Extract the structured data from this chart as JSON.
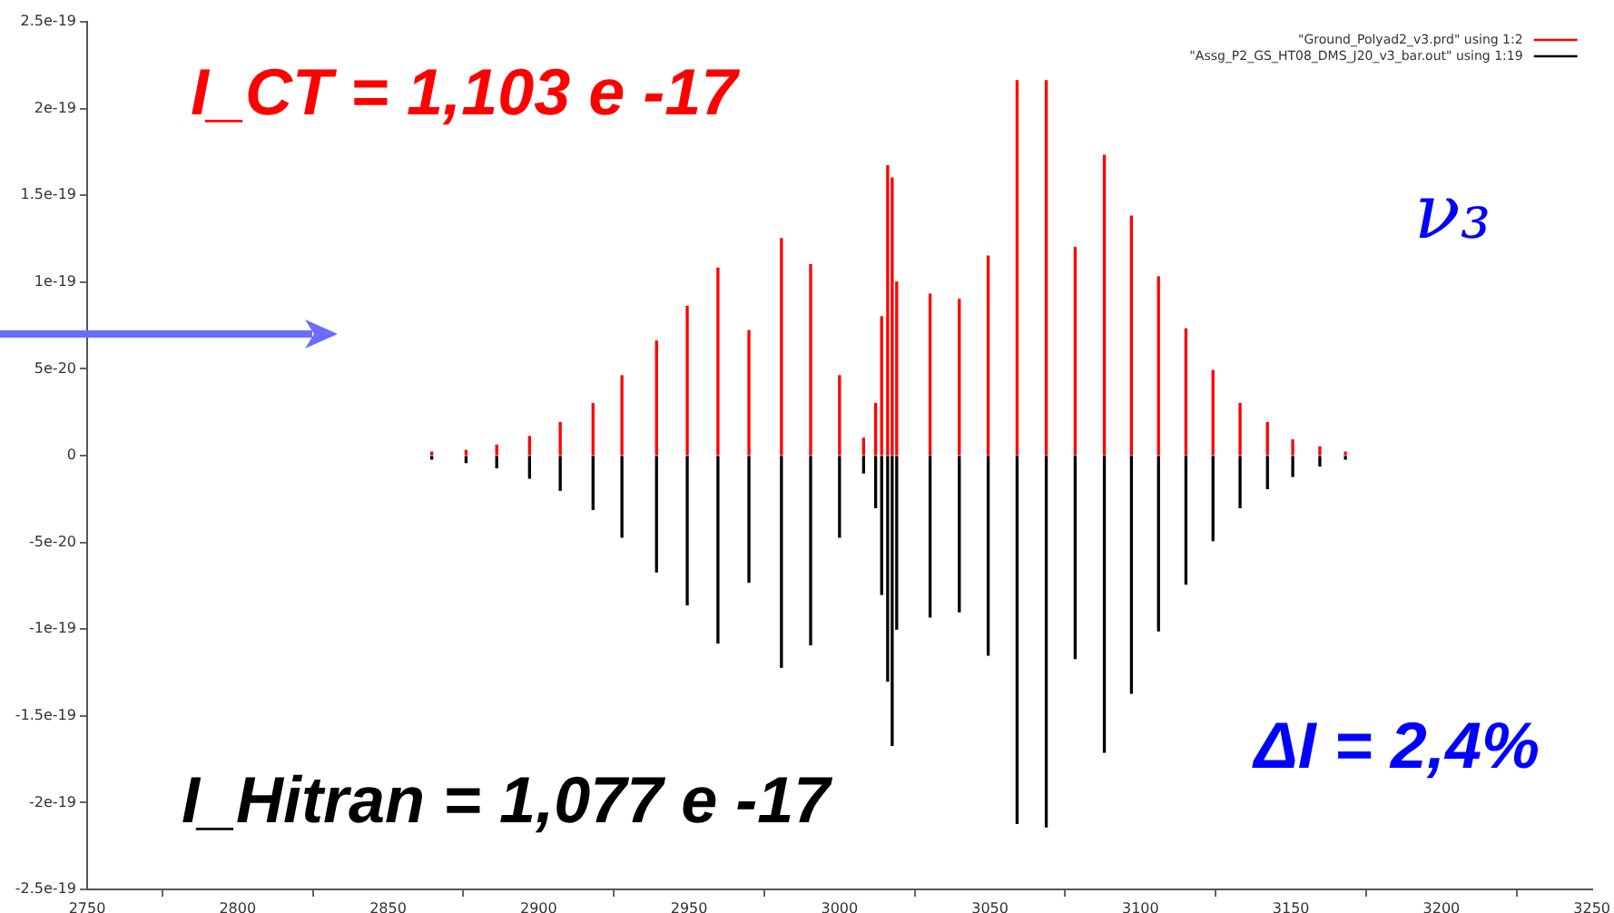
{
  "chart_data": {
    "type": "bar",
    "xlim": [
      2750,
      3250
    ],
    "xticks": [
      2750,
      2800,
      2850,
      2900,
      2950,
      3000,
      3050,
      3100,
      3150,
      3200,
      3250
    ],
    "ylim": [
      -2.5e-19,
      2.5e-19
    ],
    "yticks": [
      -2.5e-19,
      -2e-19,
      -1.5e-19,
      -1e-19,
      -5e-20,
      0,
      5e-20,
      1e-19,
      1.5e-19,
      2e-19,
      2.5e-19
    ],
    "legend": "top right",
    "annotations": [
      "I_CT = 1,103 e -17",
      "I_Hitran = 1,077 e -17",
      "ΔI = 2,4%",
      "ν₃"
    ],
    "series": [
      {
        "name": "\"Ground_Polyad2_v3.prd\" using 1:2",
        "color": "#ff0000",
        "x": [
          2864.5,
          2875.9,
          2886.1,
          2897,
          2907.2,
          2918.1,
          2927.7,
          2939.2,
          2949.4,
          2959.6,
          2969.9,
          2980.7,
          2990.4,
          3000,
          3008,
          3012,
          3014,
          3016,
          3017.5,
          3019,
          3030.1,
          3039.8,
          3049.4,
          3059,
          3068.7,
          3078.3,
          3088,
          3097,
          3106,
          3115.1,
          3124.1,
          3133.1,
          3142.2,
          3150.6,
          3159.6,
          3168.1
        ],
        "values": [
          2e-21,
          3e-21,
          6e-21,
          1.1e-20,
          1.9e-20,
          3e-20,
          4.6e-20,
          6.6e-20,
          8.6e-20,
          1.08e-19,
          7.2e-20,
          1.25e-19,
          1.1e-19,
          4.6e-20,
          1e-20,
          3e-20,
          8e-20,
          1.67e-19,
          1.6e-19,
          1e-19,
          9.3e-20,
          9e-20,
          1.15e-19,
          2.16e-19,
          2.16e-19,
          1.2e-19,
          1.73e-19,
          1.38e-19,
          1.03e-19,
          7.3e-20,
          4.9e-20,
          3e-20,
          1.9e-20,
          9e-21,
          5e-21,
          2e-21
        ]
      },
      {
        "name": "\"Assg_P2_GS_HT08_DMS_J20_v3_bar.out\" using 1:19",
        "color": "#000000",
        "x": [
          2864.5,
          2875.9,
          2886.1,
          2897,
          2907.2,
          2918.1,
          2927.7,
          2939.2,
          2949.4,
          2959.6,
          2969.9,
          2980.7,
          2990.4,
          3000,
          3008,
          3012,
          3014,
          3016,
          3017.5,
          3019,
          3030.1,
          3039.8,
          3049.4,
          3059,
          3068.7,
          3078.3,
          3088,
          3097,
          3106,
          3115.1,
          3124.1,
          3133.1,
          3142.2,
          3150.6,
          3159.6,
          3168.1
        ],
        "values": [
          -2e-21,
          -4e-21,
          -7e-21,
          -1.3e-20,
          -2e-20,
          -3.1e-20,
          -4.7e-20,
          -6.7e-20,
          -8.6e-20,
          -1.08e-19,
          -7.3e-20,
          -1.22e-19,
          -1.09e-19,
          -4.7e-20,
          -1e-20,
          -3e-20,
          -8e-20,
          -1.3e-19,
          -1.67e-19,
          -1e-19,
          -9.3e-20,
          -9e-20,
          -1.15e-19,
          -2.12e-19,
          -2.14e-19,
          -1.17e-19,
          -1.71e-19,
          -1.37e-19,
          -1.01e-19,
          -7.4e-20,
          -4.9e-20,
          -3e-20,
          -1.9e-20,
          -1.2e-20,
          -6e-21,
          -2e-21
        ]
      }
    ]
  }
}
